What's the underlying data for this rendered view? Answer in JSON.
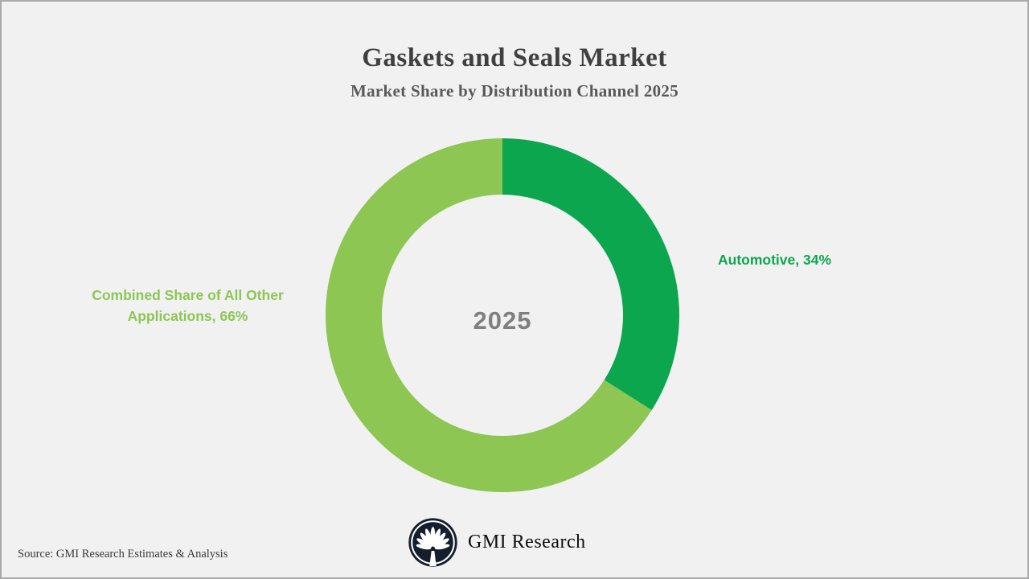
{
  "header": {
    "title": "Gaskets and Seals Market",
    "subtitle": "Market Share by Distribution Channel 2025"
  },
  "chart_data": {
    "type": "pie",
    "subtype": "donut",
    "title": "Gaskets and Seals Market",
    "subtitle": "Market Share by Distribution Channel 2025",
    "center_label": "2025",
    "start_angle_deg": 0,
    "direction": "clockwise",
    "inner_radius_ratio": 0.68,
    "background_color": "#f1f1f2",
    "segments": [
      {
        "label": "Automotive",
        "value": 34,
        "unit": "%",
        "color": "#0ba64e",
        "callout": "Automotive, 34%"
      },
      {
        "label": "Combined Share of All Other Applications",
        "value": 66,
        "unit": "%",
        "color": "#8dc653",
        "callout": "Combined Share of All Other Applications, 66%"
      }
    ]
  },
  "footer": {
    "source": "Source: GMI Research Estimates & Analysis",
    "brand_name": "GMI Research",
    "logo_icon": "palm-fan-icon",
    "logo_bg_color": "#151e2d"
  }
}
